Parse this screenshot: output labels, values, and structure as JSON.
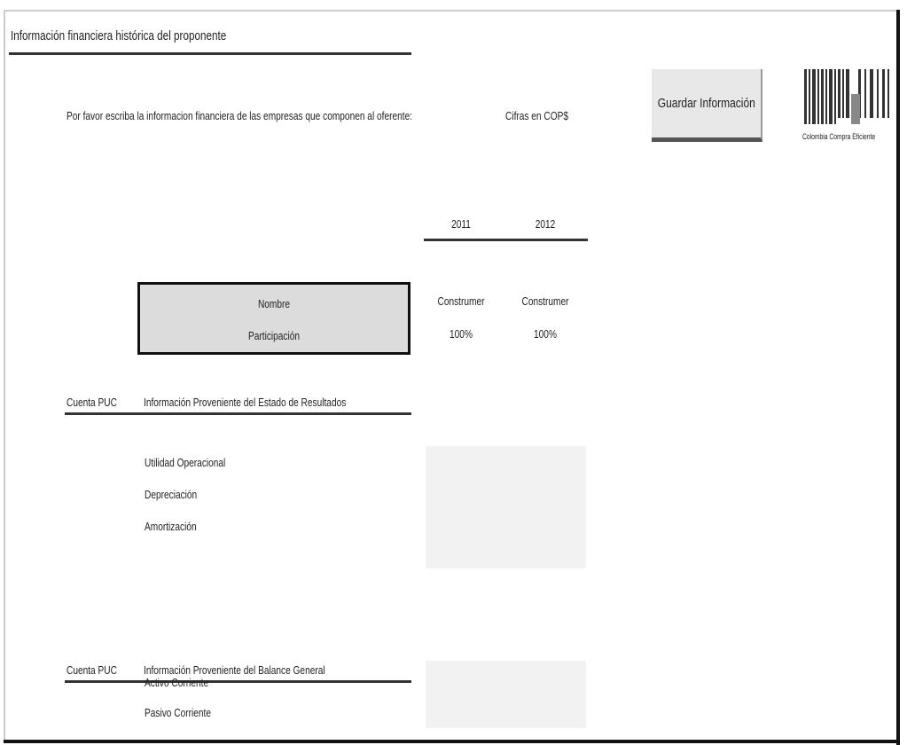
{
  "title": "Información financiera histórica del proponente",
  "instruction": "Por favor escriba la informacion financiera de las empresas que componen al oferente:",
  "currency_note": "Cifras en COP$",
  "save_button": "Guardar Información",
  "logo_text": "Colombia Compra Eficiente",
  "years": [
    "2011",
    "2012"
  ],
  "header_box": {
    "name_label": "Nombre",
    "share_label": "Participación"
  },
  "companies": [
    {
      "name": "Construmer",
      "share": "100%"
    },
    {
      "name": "Construmer",
      "share": "100%"
    }
  ],
  "section1": {
    "code_label": "Cuenta PUC",
    "title": "Información Proveniente del Estado de Resultados",
    "items": [
      "Utilidad Operacional",
      "Depreciación",
      "Amortización"
    ]
  },
  "section2": {
    "code_label": "Cuenta PUC",
    "title": "Información Proveniente del Balance General",
    "items": [
      "Activo Corriente",
      "Pasivo Corriente"
    ]
  }
}
